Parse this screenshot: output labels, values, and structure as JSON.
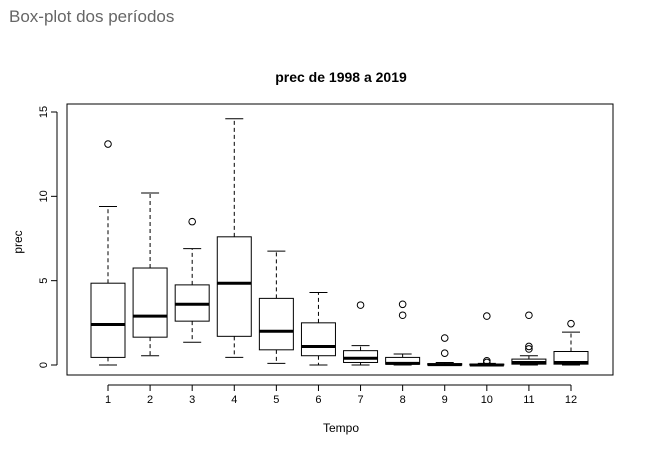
{
  "header": {
    "title": "Box-plot dos períodos"
  },
  "chart_data": {
    "type": "box",
    "title": "prec de 1998 a 2019",
    "xlabel": "Tempo",
    "ylabel": "prec",
    "ylim": [
      0,
      15
    ],
    "yticks": [
      0,
      5,
      10,
      15
    ],
    "grid": false,
    "categories": [
      "1",
      "2",
      "3",
      "4",
      "5",
      "6",
      "7",
      "8",
      "9",
      "10",
      "11",
      "12"
    ],
    "boxes": [
      {
        "category": "1",
        "whisker_low": 0.0,
        "q1": 0.45,
        "median": 2.4,
        "q3": 4.85,
        "whisker_high": 9.4,
        "outliers": [
          13.1
        ]
      },
      {
        "category": "2",
        "whisker_low": 0.55,
        "q1": 1.65,
        "median": 2.9,
        "q3": 5.75,
        "whisker_high": 10.2,
        "outliers": []
      },
      {
        "category": "3",
        "whisker_low": 1.35,
        "q1": 2.6,
        "median": 3.6,
        "q3": 4.75,
        "whisker_high": 6.9,
        "outliers": [
          8.5
        ]
      },
      {
        "category": "4",
        "whisker_low": 0.45,
        "q1": 1.7,
        "median": 4.85,
        "q3": 7.6,
        "whisker_high": 14.6,
        "outliers": []
      },
      {
        "category": "5",
        "whisker_low": 0.1,
        "q1": 0.9,
        "median": 2.0,
        "q3": 3.95,
        "whisker_high": 6.75,
        "outliers": []
      },
      {
        "category": "6",
        "whisker_low": 0.0,
        "q1": 0.55,
        "median": 1.1,
        "q3": 2.5,
        "whisker_high": 4.3,
        "outliers": []
      },
      {
        "category": "7",
        "whisker_low": 0.0,
        "q1": 0.15,
        "median": 0.4,
        "q3": 0.85,
        "whisker_high": 1.15,
        "outliers": [
          3.55
        ]
      },
      {
        "category": "8",
        "whisker_low": 0.0,
        "q1": 0.05,
        "median": 0.1,
        "q3": 0.45,
        "whisker_high": 0.65,
        "outliers": [
          2.95,
          3.6
        ]
      },
      {
        "category": "9",
        "whisker_low": 0.0,
        "q1": 0.0,
        "median": 0.02,
        "q3": 0.08,
        "whisker_high": 0.15,
        "outliers": [
          0.7,
          1.6
        ]
      },
      {
        "category": "10",
        "whisker_low": 0.0,
        "q1": 0.0,
        "median": 0.0,
        "q3": 0.05,
        "whisker_high": 0.1,
        "outliers": [
          0.15,
          0.25,
          2.9
        ]
      },
      {
        "category": "11",
        "whisker_low": 0.0,
        "q1": 0.05,
        "median": 0.15,
        "q3": 0.35,
        "whisker_high": 0.55,
        "outliers": [
          0.95,
          1.1,
          2.95
        ]
      },
      {
        "category": "12",
        "whisker_low": 0.0,
        "q1": 0.05,
        "median": 0.15,
        "q3": 0.8,
        "whisker_high": 1.95,
        "outliers": [
          2.45
        ]
      }
    ]
  }
}
